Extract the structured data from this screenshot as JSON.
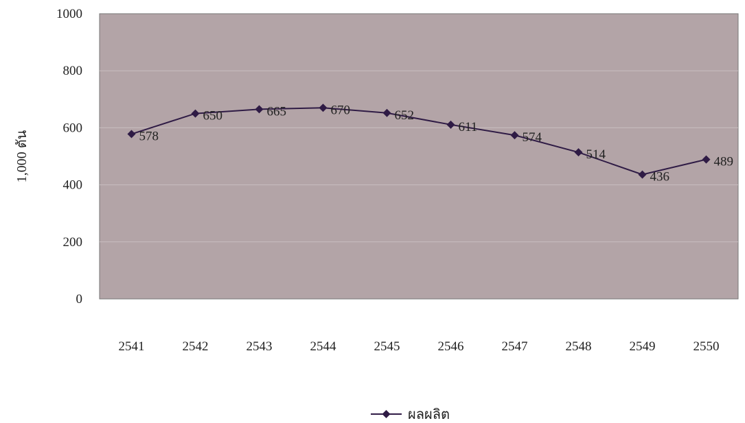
{
  "chart_data": {
    "type": "line",
    "categories": [
      "2541",
      "2542",
      "2543",
      "2544",
      "2545",
      "2546",
      "2547",
      "2548",
      "2549",
      "2550"
    ],
    "series": [
      {
        "name": "ผลผลิต",
        "values": [
          578,
          650,
          665,
          670,
          652,
          611,
          574,
          514,
          436,
          489
        ]
      }
    ],
    "ylabel": "1,000 ตัน",
    "ylim": [
      0,
      1000
    ],
    "yticks": [
      0,
      200,
      400,
      600,
      800,
      1000
    ],
    "grid": true,
    "data_labels": true,
    "legend_position": "bottom-center",
    "colors": {
      "plot_background": "#b3a4a7",
      "line": "#2f1b45",
      "gridline": "#c9bec0",
      "axis": "#555555"
    }
  }
}
